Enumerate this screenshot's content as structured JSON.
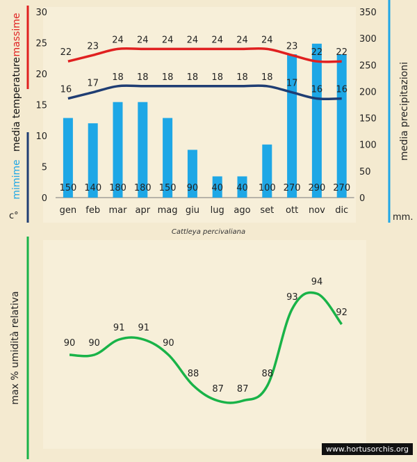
{
  "chart_data": [
    {
      "type": "bar+line",
      "categories": [
        "gen",
        "feb",
        "mar",
        "apr",
        "mag",
        "giu",
        "lug",
        "ago",
        "set",
        "ott",
        "nov",
        "dic"
      ],
      "series": [
        {
          "name": "media precipitazioni",
          "kind": "bar",
          "axis": "right",
          "color": "#1ea7e6",
          "values": [
            150,
            140,
            180,
            180,
            150,
            90,
            40,
            40,
            100,
            270,
            290,
            270
          ]
        },
        {
          "name": "massime",
          "kind": "line",
          "axis": "left",
          "color": "#e02020",
          "values": [
            22,
            23,
            24,
            24,
            24,
            24,
            24,
            24,
            24,
            23,
            22,
            22
          ]
        },
        {
          "name": "mimime",
          "kind": "line",
          "axis": "left",
          "color": "#1f3d73",
          "values": [
            16,
            17,
            18,
            18,
            18,
            18,
            18,
            18,
            18,
            17,
            16,
            16
          ]
        }
      ],
      "left_axis": {
        "ylim": [
          0,
          30
        ],
        "ticks": [
          0,
          5,
          10,
          15,
          20,
          25,
          30
        ],
        "unit": "c°",
        "label_parts": [
          {
            "text": "massime",
            "color": "#e02020"
          },
          {
            "text": "media  temperature",
            "color": "#111111"
          },
          {
            "text": "mimime",
            "color": "#1ea7e6"
          }
        ]
      },
      "right_axis": {
        "ylim": [
          0,
          350
        ],
        "ticks": [
          0,
          50,
          100,
          150,
          200,
          250,
          300,
          350
        ],
        "unit": "mm.",
        "label": "media  precipitazioni"
      },
      "title": "Cattleya percivaliana"
    },
    {
      "type": "line",
      "categories": [
        "gen",
        "feb",
        "mar",
        "apr",
        "mag",
        "giu",
        "lug",
        "ago",
        "set",
        "ott",
        "nov",
        "dic"
      ],
      "series": [
        {
          "name": "",
          "color": "#19b348",
          "values": [
            90,
            90,
            91,
            91,
            90,
            88,
            87,
            87,
            88,
            93,
            94,
            92
          ]
        }
      ],
      "ylabel": "max  %  umidità relativa"
    }
  ],
  "footer": {
    "watermark": "www.hortusorchis.org"
  },
  "colors": {
    "background": "#f4ead0",
    "panel": "#f7efd9",
    "precip_axis": "#1ea7e6",
    "humidity_axis": "#19b348"
  }
}
